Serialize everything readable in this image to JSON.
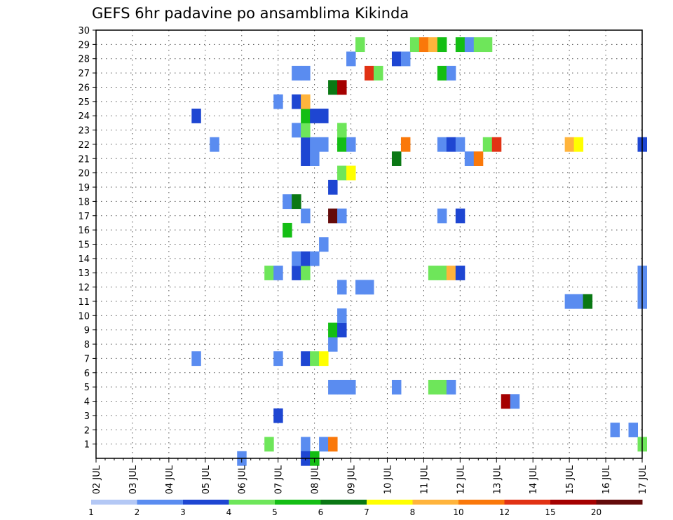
{
  "chart_data": {
    "type": "heatmap",
    "title": "GEFS 6hr padavine po ansamblima Kikinda",
    "y_members": [
      1,
      2,
      3,
      4,
      5,
      6,
      7,
      8,
      9,
      10,
      11,
      12,
      13,
      14,
      15,
      16,
      17,
      18,
      19,
      20,
      21,
      22,
      23,
      24,
      25,
      26,
      27,
      28,
      29,
      30
    ],
    "x_ticks": [
      "02 JUL",
      "03 JUL",
      "04 JUL",
      "05 JUL",
      "06 JUL",
      "07 JUL",
      "08 JUL",
      "09 JUL",
      "10 JUL",
      "11 JUL",
      "12 JUL",
      "13 JUL",
      "14 JUL",
      "15 JUL",
      "16 JUL",
      "17 JUL"
    ],
    "x_range_days": [
      2,
      17
    ],
    "grid": true,
    "colorbar": {
      "labels": [
        "1",
        "2",
        "3",
        "4",
        "5",
        "6",
        "7",
        "8",
        "10",
        "12",
        "15",
        "20"
      ],
      "colors": [
        "#b4c8f5",
        "#5a8cf0",
        "#1e46d2",
        "#6ee65a",
        "#14be14",
        "#0a7814",
        "#ffff00",
        "#ffb43c",
        "#fa780a",
        "#e13214",
        "#a50000",
        "#640a0a"
      ]
    },
    "cells": [
      [
        1,
        6.75,
        3
      ],
      [
        1,
        7.75,
        1
      ],
      [
        1,
        8.25,
        1
      ],
      [
        1,
        8.5,
        8
      ],
      [
        1,
        17.0,
        3
      ],
      [
        2,
        16.25,
        1
      ],
      [
        2,
        16.75,
        1
      ],
      [
        3,
        7.0,
        2
      ],
      [
        4,
        13.25,
        10
      ],
      [
        4,
        13.5,
        1
      ],
      [
        5,
        8.5,
        1
      ],
      [
        5,
        8.75,
        1
      ],
      [
        5,
        9.0,
        1
      ],
      [
        5,
        10.25,
        1
      ],
      [
        5,
        11.25,
        3
      ],
      [
        5,
        11.5,
        3
      ],
      [
        5,
        11.75,
        1
      ],
      [
        7,
        4.75,
        1
      ],
      [
        7,
        7.0,
        1
      ],
      [
        7,
        7.75,
        2
      ],
      [
        7,
        8.0,
        3
      ],
      [
        7,
        8.25,
        6
      ],
      [
        8,
        8.5,
        1
      ],
      [
        9,
        8.5,
        4
      ],
      [
        9,
        8.75,
        2
      ],
      [
        10,
        8.75,
        1
      ],
      [
        11,
        15.0,
        1
      ],
      [
        11,
        15.25,
        1
      ],
      [
        11,
        15.5,
        5
      ],
      [
        11,
        17.0,
        1
      ],
      [
        12,
        8.75,
        1
      ],
      [
        12,
        9.25,
        1
      ],
      [
        12,
        9.5,
        1
      ],
      [
        12,
        17.0,
        1
      ],
      [
        13,
        6.75,
        3
      ],
      [
        13,
        7.0,
        1
      ],
      [
        13,
        7.5,
        2
      ],
      [
        13,
        7.75,
        3
      ],
      [
        13,
        11.25,
        3
      ],
      [
        13,
        11.5,
        3
      ],
      [
        13,
        11.75,
        7
      ],
      [
        13,
        12.0,
        2
      ],
      [
        13,
        17.0,
        1
      ],
      [
        14,
        7.5,
        1
      ],
      [
        14,
        7.75,
        2
      ],
      [
        14,
        8.0,
        1
      ],
      [
        15,
        8.25,
        1
      ],
      [
        16,
        7.25,
        4
      ],
      [
        17,
        7.75,
        1
      ],
      [
        17,
        8.5,
        11
      ],
      [
        17,
        8.75,
        1
      ],
      [
        17,
        11.5,
        1
      ],
      [
        17,
        12.0,
        2
      ],
      [
        18,
        7.25,
        1
      ],
      [
        18,
        7.5,
        5
      ],
      [
        19,
        8.5,
        2
      ],
      [
        20,
        8.75,
        3
      ],
      [
        20,
        9.0,
        6
      ],
      [
        21,
        7.75,
        2
      ],
      [
        21,
        8.0,
        1
      ],
      [
        21,
        10.25,
        5
      ],
      [
        21,
        12.25,
        1
      ],
      [
        21,
        12.5,
        8
      ],
      [
        22,
        5.25,
        1
      ],
      [
        22,
        7.75,
        2
      ],
      [
        22,
        8.0,
        1
      ],
      [
        22,
        8.25,
        1
      ],
      [
        22,
        8.75,
        4
      ],
      [
        22,
        9.0,
        1
      ],
      [
        22,
        10.5,
        8
      ],
      [
        22,
        11.5,
        1
      ],
      [
        22,
        11.75,
        2
      ],
      [
        22,
        12.0,
        1
      ],
      [
        22,
        12.75,
        3
      ],
      [
        22,
        13.0,
        9
      ],
      [
        22,
        15.0,
        7
      ],
      [
        22,
        15.25,
        6
      ],
      [
        22,
        17.0,
        2
      ],
      [
        23,
        7.5,
        1
      ],
      [
        23,
        7.75,
        3
      ],
      [
        23,
        8.75,
        3
      ],
      [
        24,
        4.75,
        2
      ],
      [
        24,
        7.75,
        4
      ],
      [
        24,
        8.0,
        2
      ],
      [
        24,
        8.25,
        2
      ],
      [
        25,
        7.0,
        1
      ],
      [
        25,
        7.5,
        2
      ],
      [
        25,
        7.75,
        7
      ],
      [
        26,
        8.5,
        5
      ],
      [
        26,
        8.75,
        10
      ],
      [
        27,
        7.5,
        1
      ],
      [
        27,
        7.75,
        1
      ],
      [
        27,
        9.5,
        9
      ],
      [
        27,
        9.75,
        3
      ],
      [
        27,
        11.5,
        4
      ],
      [
        27,
        11.75,
        1
      ],
      [
        28,
        9.0,
        1
      ],
      [
        28,
        10.25,
        2
      ],
      [
        28,
        10.5,
        1
      ],
      [
        29,
        9.25,
        3
      ],
      [
        29,
        10.75,
        3
      ],
      [
        29,
        11.0,
        8
      ],
      [
        29,
        11.25,
        7
      ],
      [
        29,
        11.5,
        4
      ],
      [
        29,
        12.0,
        4
      ],
      [
        29,
        12.25,
        1
      ],
      [
        29,
        12.5,
        3
      ],
      [
        29,
        12.75,
        3
      ],
      [
        0,
        6.0,
        1
      ],
      [
        0,
        7.75,
        2
      ],
      [
        0,
        8.0,
        4
      ]
    ]
  }
}
